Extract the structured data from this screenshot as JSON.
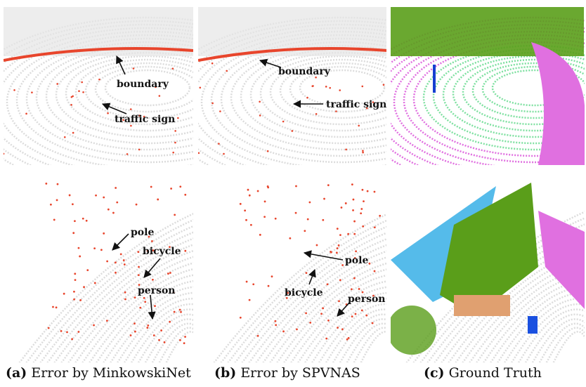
{
  "panels": [
    {
      "label": "(a)",
      "caption": "Error by MinkowskiNet",
      "annotations": [
        "boundary",
        "traffic sign",
        "pole",
        "bicycle",
        "person"
      ]
    },
    {
      "label": "(b)",
      "caption": "Error by SPVNAS",
      "annotations": [
        "boundary",
        "traffic sign",
        "pole",
        "bicycle",
        "person"
      ]
    },
    {
      "label": "(c)",
      "caption": "Ground Truth"
    }
  ]
}
